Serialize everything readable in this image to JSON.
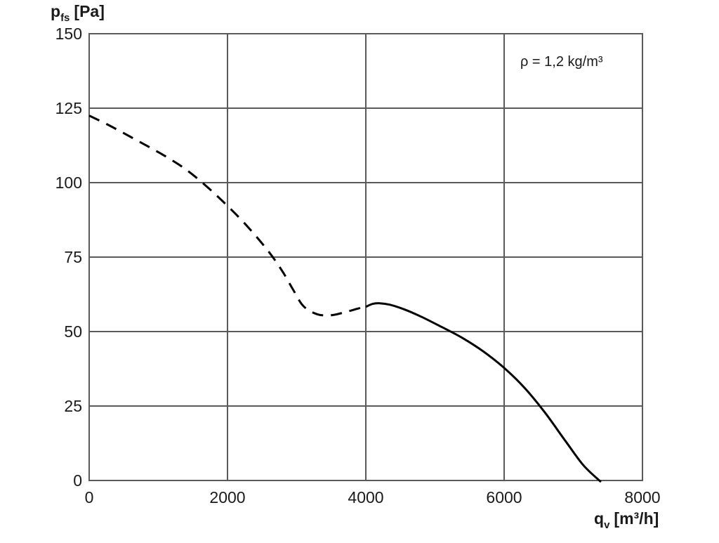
{
  "chart_data": {
    "type": "line",
    "ylabel_main": "p",
    "ylabel_sub": "fs",
    "ylabel_unit": "[Pa]",
    "xlabel_main": "q",
    "xlabel_sub": "v",
    "xlabel_unit": "[m³/h]",
    "annotation": "ρ = 1,2 kg/m³",
    "xlim": [
      0,
      8000
    ],
    "ylim": [
      0,
      150
    ],
    "x_ticks": [
      0,
      2000,
      4000,
      6000,
      8000
    ],
    "y_ticks": [
      0,
      25,
      50,
      75,
      100,
      125,
      150
    ],
    "grid": true,
    "series": [
      {
        "style": "dashed",
        "x": [
          0,
          250,
          500,
          800,
          1100,
          1400,
          1700,
          2000,
          2300,
          2600,
          2800,
          2950,
          3100,
          3300,
          3500,
          3700,
          3900,
          4000
        ],
        "y": [
          122.5,
          119.7,
          116.6,
          112.8,
          108.9,
          104.4,
          98.7,
          92.2,
          85,
          76.7,
          70,
          64,
          58.5,
          55.8,
          55.5,
          56.5,
          57.8,
          58.3
        ]
      },
      {
        "style": "solid",
        "x": [
          4000,
          4100,
          4200,
          4350,
          4550,
          4800,
          5100,
          5400,
          5700,
          6000,
          6300,
          6600,
          6900,
          7150,
          7400
        ],
        "y": [
          58.3,
          59.3,
          59.5,
          59.0,
          57.5,
          55.0,
          51.5,
          47.8,
          43.3,
          37.8,
          31.0,
          22.5,
          12.8,
          5.0,
          -0.5
        ]
      }
    ]
  }
}
